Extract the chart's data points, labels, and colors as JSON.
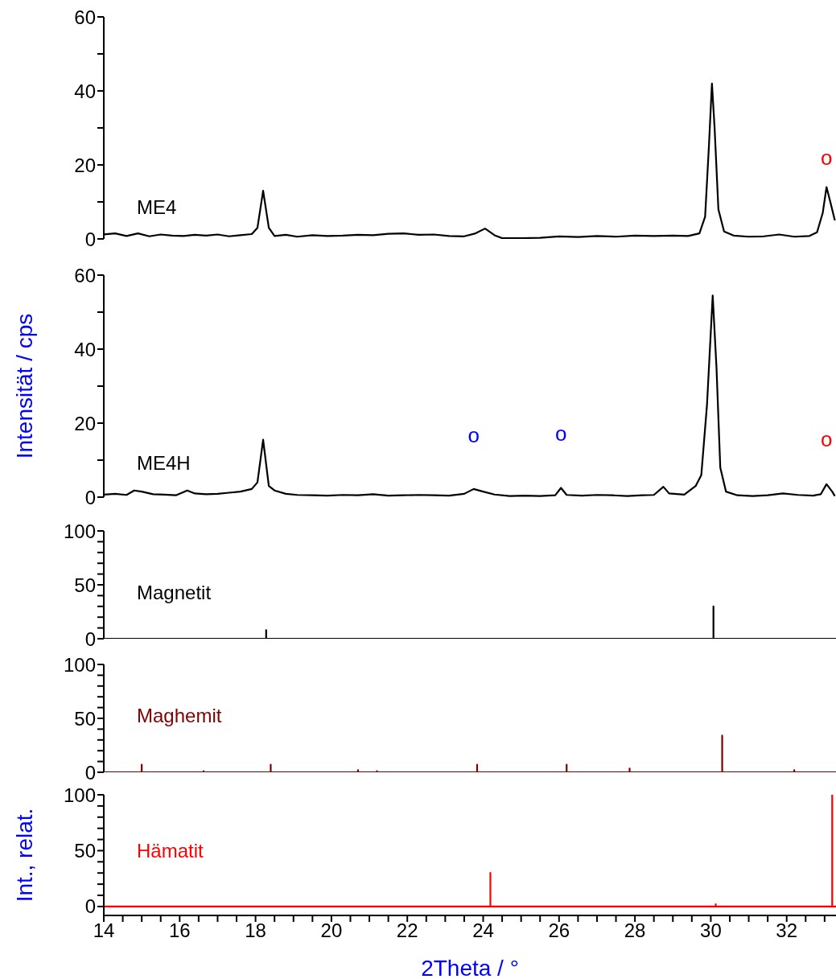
{
  "chart_data": [
    {
      "type": "line",
      "xlim": [
        14,
        33.3
      ],
      "ylim": [
        0,
        60
      ],
      "yticks": [
        0,
        {
          "value": 10,
          "label": null
        },
        20,
        {
          "value": 30,
          "label": null
        },
        40,
        {
          "value": 50,
          "label": null
        },
        60
      ],
      "tick_labels": "y",
      "grid": false,
      "legend": false,
      "marker": "none",
      "line_style": "solid",
      "series": [
        {
          "name": "ME4",
          "color": "#000000",
          "x": [
            14,
            14.3,
            14.6,
            14.9,
            15.2,
            15.5,
            15.8,
            16.1,
            16.4,
            16.7,
            17.0,
            17.3,
            17.6,
            17.9,
            18.05,
            18.2,
            18.35,
            18.5,
            18.8,
            19.1,
            19.5,
            19.9,
            20.3,
            20.7,
            21.1,
            21.5,
            21.9,
            22.3,
            22.7,
            23.1,
            23.5,
            23.8,
            24.05,
            24.3,
            24.5,
            25.0,
            25.5,
            26.0,
            26.5,
            27.0,
            27.5,
            28.0,
            28.5,
            29.0,
            29.4,
            29.7,
            29.85,
            29.95,
            30.03,
            30.1,
            30.2,
            30.35,
            30.6,
            31.0,
            31.4,
            31.8,
            32.2,
            32.6,
            32.8,
            32.95,
            33.05,
            33.15,
            33.27
          ],
          "values": [
            1.2,
            1.5,
            0.8,
            1.5,
            0.7,
            1.2,
            0.9,
            0.8,
            1.1,
            0.9,
            1.2,
            0.7,
            1.0,
            1.3,
            3,
            13,
            3,
            0.8,
            1.1,
            0.6,
            1.0,
            0.8,
            0.9,
            1.1,
            1.0,
            1.4,
            1.5,
            1.1,
            1.2,
            0.8,
            0.7,
            1.5,
            2.8,
            1.0,
            0.2,
            0.2,
            0.3,
            0.7,
            0.5,
            0.8,
            0.6,
            0.9,
            0.8,
            0.9,
            0.8,
            1.5,
            6,
            25,
            42,
            30,
            8,
            2,
            0.9,
            0.6,
            0.7,
            1.2,
            0.6,
            0.8,
            1.8,
            7,
            14,
            10,
            5
          ]
        }
      ],
      "annotations": [
        {
          "text": "o",
          "x": 33.05,
          "y": 14
        }
      ]
    },
    {
      "type": "line",
      "xlim": [
        14,
        33.3
      ],
      "ylim": [
        0,
        60
      ],
      "yticks": [
        0,
        {
          "value": 10,
          "label": null
        },
        20,
        {
          "value": 30,
          "label": null
        },
        40,
        {
          "value": 50,
          "label": null
        },
        60
      ],
      "tick_labels": "y",
      "ylabel": "Intensität / cps",
      "grid": false,
      "legend": false,
      "marker": "none",
      "line_style": "solid",
      "series": [
        {
          "name": "ME4H",
          "color": "#000000",
          "x": [
            14,
            14.3,
            14.6,
            14.8,
            15.0,
            15.3,
            15.6,
            15.9,
            16.2,
            16.4,
            16.7,
            17.0,
            17.3,
            17.6,
            17.9,
            18.05,
            18.2,
            18.35,
            18.5,
            18.8,
            19.1,
            19.5,
            19.9,
            20.3,
            20.7,
            21.1,
            21.5,
            21.9,
            22.3,
            22.7,
            23.1,
            23.5,
            23.75,
            24.0,
            24.3,
            24.7,
            25.1,
            25.5,
            25.9,
            26.05,
            26.2,
            26.6,
            27.0,
            27.4,
            27.8,
            28.2,
            28.5,
            28.75,
            28.9,
            29.3,
            29.6,
            29.75,
            29.9,
            30.05,
            30.15,
            30.25,
            30.4,
            30.7,
            31.1,
            31.5,
            31.9,
            32.3,
            32.7,
            32.9,
            33.05,
            33.2,
            33.27
          ],
          "values": [
            0.7,
            0.9,
            0.6,
            1.8,
            1.5,
            0.8,
            0.7,
            0.5,
            1.8,
            1.0,
            0.8,
            0.9,
            1.2,
            1.5,
            2.2,
            4,
            15.5,
            3,
            1.8,
            0.9,
            0.6,
            0.5,
            0.4,
            0.6,
            0.5,
            0.8,
            0.4,
            0.5,
            0.6,
            0.5,
            0.4,
            0.9,
            2.2,
            1.5,
            0.7,
            0.3,
            0.4,
            0.3,
            0.5,
            2.5,
            0.6,
            0.4,
            0.6,
            0.5,
            0.3,
            0.5,
            0.6,
            2.8,
            1.0,
            0.7,
            3,
            6,
            25,
            54.5,
            35,
            8,
            1.5,
            0.5,
            0.3,
            0.5,
            1.0,
            0.6,
            0.4,
            0.8,
            3.5,
            1.5,
            0.3
          ]
        }
      ],
      "annotations": [
        {
          "text": "o",
          "x": 23.75,
          "y": 2.2
        },
        {
          "text": "o",
          "x": 26.05,
          "y": 2.5
        },
        {
          "text": "o",
          "x": 33.05,
          "y": 3.5
        }
      ]
    },
    {
      "type": "line",
      "xlim": [
        14,
        33.3
      ],
      "ylim": [
        0,
        100
      ],
      "yticks": [
        0,
        {
          "value": 10,
          "label": null
        },
        {
          "value": 20,
          "label": null
        },
        {
          "value": 30,
          "label": null
        },
        {
          "value": 40,
          "label": null
        },
        50,
        {
          "value": 60,
          "label": null
        },
        {
          "value": 70,
          "label": null
        },
        {
          "value": 80,
          "label": null
        },
        {
          "value": 90,
          "label": null
        },
        100
      ],
      "tick_labels": "y",
      "grid": false,
      "legend": false,
      "marker": "none",
      "line_style": "solid",
      "series": [
        {
          "name": "Magnetit",
          "color": "#000000",
          "x": [
            14,
            18.28,
            18.28,
            18.28,
            30.07,
            30.07,
            30.07,
            33.3
          ],
          "values": [
            0,
            0,
            8,
            0,
            0,
            30,
            0,
            0
          ]
        }
      ]
    },
    {
      "type": "line",
      "xlim": [
        14,
        33.3
      ],
      "ylim": [
        0,
        100
      ],
      "yticks": [
        0,
        {
          "value": 10,
          "label": null
        },
        {
          "value": 20,
          "label": null
        },
        {
          "value": 30,
          "label": null
        },
        {
          "value": 40,
          "label": null
        },
        50,
        {
          "value": 60,
          "label": null
        },
        {
          "value": 70,
          "label": null
        },
        {
          "value": 80,
          "label": null
        },
        {
          "value": 90,
          "label": null
        },
        100
      ],
      "tick_labels": "y",
      "grid": false,
      "legend": false,
      "marker": "none",
      "line_style": "solid",
      "series": [
        {
          "name": "Maghemit",
          "color": "#800000",
          "x": [
            14,
            15.0,
            15.0,
            15.0,
            16.63,
            16.63,
            16.63,
            18.4,
            18.4,
            18.4,
            20.7,
            20.7,
            20.7,
            21.2,
            21.2,
            21.2,
            23.84,
            23.84,
            23.84,
            26.2,
            26.2,
            26.2,
            27.86,
            27.86,
            27.86,
            30.3,
            30.3,
            30.3,
            32.2,
            32.2,
            32.2,
            33.3
          ],
          "values": [
            0,
            0,
            7,
            0,
            0,
            1,
            0,
            0,
            7,
            0,
            0,
            2,
            0,
            0,
            1,
            0,
            0,
            7,
            0,
            0,
            7,
            0,
            0,
            3.5,
            0,
            0,
            34,
            0,
            0,
            2,
            0,
            0
          ]
        }
      ]
    },
    {
      "type": "line",
      "xlim": [
        14,
        33.3
      ],
      "ylim": [
        -8,
        100
      ],
      "yticks": [
        0,
        {
          "value": 10,
          "label": null
        },
        {
          "value": 20,
          "label": null
        },
        {
          "value": 30,
          "label": null
        },
        {
          "value": 40,
          "label": null
        },
        50,
        {
          "value": 60,
          "label": null
        },
        {
          "value": 70,
          "label": null
        },
        {
          "value": 80,
          "label": null
        },
        {
          "value": 90,
          "label": null
        },
        100
      ],
      "xticks": [
        14,
        {
          "value": 14.5,
          "label": null
        },
        {
          "value": 15,
          "label": null
        },
        {
          "value": 15.5,
          "label": null
        },
        16,
        {
          "value": 16.5,
          "label": null
        },
        {
          "value": 17,
          "label": null
        },
        {
          "value": 17.5,
          "label": null
        },
        18,
        {
          "value": 18.5,
          "label": null
        },
        {
          "value": 19,
          "label": null
        },
        {
          "value": 19.5,
          "label": null
        },
        20,
        {
          "value": 20.5,
          "label": null
        },
        {
          "value": 21,
          "label": null
        },
        {
          "value": 21.5,
          "label": null
        },
        22,
        {
          "value": 22.5,
          "label": null
        },
        {
          "value": 23,
          "label": null
        },
        {
          "value": 23.5,
          "label": null
        },
        24,
        {
          "value": 24.5,
          "label": null
        },
        {
          "value": 25,
          "label": null
        },
        {
          "value": 25.5,
          "label": null
        },
        26,
        {
          "value": 26.5,
          "label": null
        },
        {
          "value": 27,
          "label": null
        },
        {
          "value": 27.5,
          "label": null
        },
        28,
        {
          "value": 28.5,
          "label": null
        },
        {
          "value": 29,
          "label": null
        },
        {
          "value": 29.5,
          "label": null
        },
        30,
        {
          "value": 30.5,
          "label": null
        },
        {
          "value": 31,
          "label": null
        },
        {
          "value": 31.5,
          "label": null
        },
        32,
        {
          "value": 32.5,
          "label": null
        },
        {
          "value": 33,
          "label": null
        }
      ],
      "xlabel": "2Theta / °",
      "ylabel": "Int., relat.",
      "grid": false,
      "legend": false,
      "marker": "none",
      "line_style": "solid",
      "series": [
        {
          "name": "Hämatit",
          "color": "#ff0000",
          "x": [
            14,
            24.19,
            24.19,
            24.19,
            30.13,
            30.13,
            30.13,
            33.2,
            33.2,
            33.2,
            33.3
          ],
          "values": [
            0,
            0,
            30,
            0,
            0,
            2,
            0,
            0,
            100,
            0,
            0
          ]
        }
      ]
    }
  ]
}
